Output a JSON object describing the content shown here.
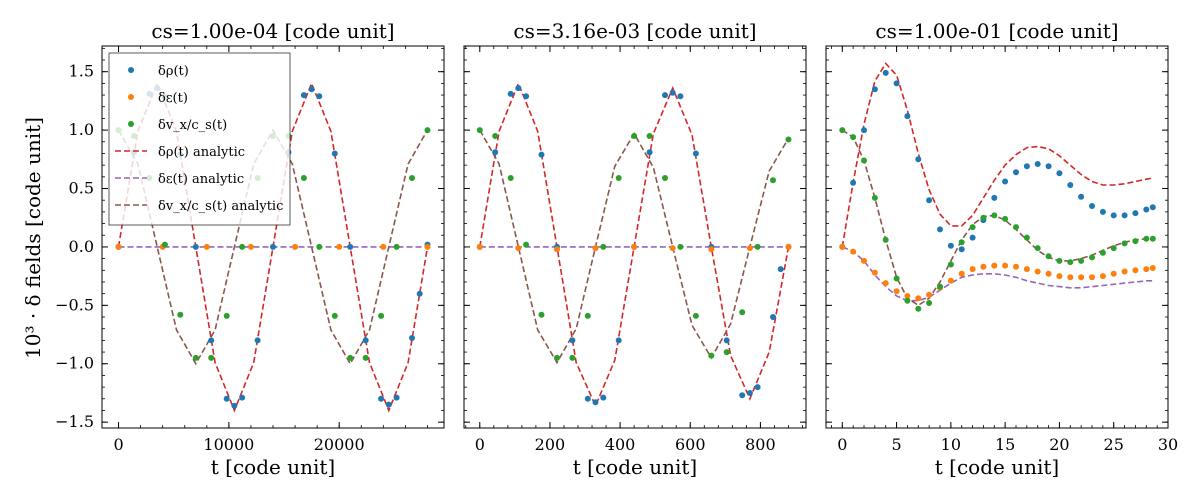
{
  "figure": {
    "ylabel": "10³ · δ fields [code unit]"
  },
  "chart_data": [
    {
      "type": "line",
      "title": "cs=1.00e-04 [code unit]",
      "xlabel": "t [code unit]",
      "ylabel": "10³ · δ fields [code unit]",
      "xlim": [
        -1500,
        29500
      ],
      "ylim": [
        -1.55,
        1.72
      ],
      "xticks": [
        0,
        10000,
        20000
      ],
      "xtick_labels": [
        "0",
        "10000",
        "20000"
      ],
      "yticks": [
        -1.5,
        -1.0,
        -0.5,
        0.0,
        0.5,
        1.0,
        1.5
      ],
      "ytick_labels": [
        "−1.5",
        "−1.0",
        "−0.5",
        "0.0",
        "0.5",
        "1.0",
        "1.5"
      ],
      "show_yticklabels": true,
      "legend": "top-left",
      "series": [
        {
          "name": "δρ(t)",
          "kind": "points",
          "color": "#1f77b4",
          "x": [
            0,
            1400,
            2800,
            3500,
            4200,
            5600,
            7000,
            8400,
            9800,
            10500,
            11200,
            12600,
            14000,
            15400,
            16800,
            17500,
            18200,
            19600,
            21000,
            22400,
            23800,
            24500,
            25200,
            26600,
            27300,
            28000
          ],
          "y": [
            0.0,
            0.81,
            1.31,
            1.36,
            1.29,
            0.79,
            0.0,
            -0.8,
            -1.3,
            -1.36,
            -1.29,
            -0.8,
            0.0,
            0.81,
            1.3,
            1.35,
            1.29,
            0.8,
            0.0,
            -0.8,
            -1.3,
            -1.35,
            -1.29,
            -0.78,
            -0.4,
            0.02
          ]
        },
        {
          "name": "δε(t)",
          "kind": "points",
          "color": "#ff7f0e",
          "x": [
            0,
            4000,
            8000,
            12000,
            16000,
            20000,
            24000,
            28000
          ],
          "y": [
            0,
            0,
            0,
            0,
            0,
            0,
            0,
            0
          ]
        },
        {
          "name": "δv_x/c_s(t)",
          "kind": "points",
          "color": "#2ca02c",
          "x": [
            0,
            1400,
            2800,
            4200,
            5600,
            7000,
            8400,
            9800,
            11200,
            12600,
            14000,
            15400,
            16800,
            18200,
            19600,
            21000,
            22400,
            23800,
            25200,
            26600,
            28000
          ],
          "y": [
            1.0,
            0.95,
            0.59,
            0.02,
            -0.58,
            -0.95,
            -0.95,
            -0.59,
            0.0,
            0.59,
            0.95,
            0.95,
            0.59,
            0.0,
            -0.59,
            -0.95,
            -0.95,
            -0.59,
            0.0,
            0.59,
            1.0
          ]
        },
        {
          "name": "δρ(t) analytic",
          "kind": "dashed",
          "color": "#d62728",
          "x": [
            0,
            1750,
            3500,
            5250,
            7000,
            8750,
            10500,
            12250,
            14000,
            15750,
            17500,
            19250,
            21000,
            22750,
            24500,
            26250,
            28000
          ],
          "y": [
            0.0,
            0.99,
            1.4,
            0.99,
            0.0,
            -0.99,
            -1.4,
            -0.99,
            0.0,
            0.99,
            1.4,
            0.99,
            0.0,
            -0.99,
            -1.4,
            -0.99,
            0.0
          ]
        },
        {
          "name": "δε(t) analytic",
          "kind": "dashed",
          "color": "#9467bd",
          "x": [
            0,
            28000
          ],
          "y": [
            0,
            0
          ]
        },
        {
          "name": "δv_x/c_s(t) analytic",
          "kind": "dashed",
          "color": "#8c564b",
          "x": [
            0,
            1750,
            3500,
            5250,
            7000,
            8750,
            10500,
            12250,
            14000,
            15750,
            17500,
            19250,
            21000,
            22750,
            24500,
            26250,
            28000
          ],
          "y": [
            1.0,
            0.71,
            0.0,
            -0.71,
            -1.0,
            -0.71,
            0.0,
            0.71,
            1.0,
            0.71,
            0.0,
            -0.71,
            -1.0,
            -0.71,
            0.0,
            0.71,
            1.0
          ]
        }
      ]
    },
    {
      "type": "line",
      "title": "cs=3.16e-03 [code unit]",
      "xlabel": "t [code unit]",
      "xlim": [
        -45,
        930
      ],
      "ylim": [
        -1.55,
        1.72
      ],
      "xticks": [
        0,
        200,
        400,
        600,
        800
      ],
      "xtick_labels": [
        "0",
        "200",
        "400",
        "600",
        "800"
      ],
      "yticks": [
        -1.5,
        -1.0,
        -0.5,
        0.0,
        0.5,
        1.0,
        1.5
      ],
      "show_yticklabels": false,
      "series": [
        {
          "name": "δρ(t)",
          "kind": "points",
          "color": "#1f77b4",
          "x": [
            0,
            44,
            88,
            110,
            132,
            176,
            220,
            264,
            308,
            330,
            352,
            396,
            440,
            484,
            528,
            550,
            572,
            616,
            660,
            704,
            748,
            770,
            792,
            836,
            858,
            880
          ],
          "y": [
            0.0,
            0.81,
            1.31,
            1.36,
            1.29,
            0.79,
            0.0,
            -0.8,
            -1.3,
            -1.33,
            -1.29,
            -0.8,
            0.0,
            0.81,
            1.3,
            1.32,
            1.29,
            0.8,
            0.0,
            -0.8,
            -1.27,
            -1.25,
            -1.2,
            -0.6,
            -0.19,
            0.0
          ]
        },
        {
          "name": "δε(t)",
          "kind": "points",
          "color": "#ff7f0e",
          "x": [
            0,
            110,
            220,
            330,
            440,
            550,
            660,
            770,
            880
          ],
          "y": [
            0,
            -0.01,
            -0.02,
            -0.01,
            0,
            -0.01,
            -0.02,
            -0.01,
            0
          ]
        },
        {
          "name": "δv_x/c_s(t)",
          "kind": "points",
          "color": "#2ca02c",
          "x": [
            0,
            44,
            88,
            132,
            176,
            220,
            264,
            308,
            352,
            396,
            440,
            484,
            528,
            572,
            616,
            660,
            704,
            748,
            792,
            836,
            880
          ],
          "y": [
            1.0,
            0.95,
            0.59,
            0.02,
            -0.58,
            -0.95,
            -0.95,
            -0.59,
            0.0,
            0.59,
            0.95,
            0.95,
            0.59,
            0.0,
            -0.59,
            -0.93,
            -0.9,
            -0.56,
            0.0,
            0.57,
            0.92
          ]
        },
        {
          "name": "δρ(t) analytic",
          "kind": "dashed",
          "color": "#d62728",
          "x": [
            0,
            55,
            110,
            165,
            220,
            275,
            330,
            385,
            440,
            495,
            550,
            605,
            660,
            715,
            770,
            825,
            880
          ],
          "y": [
            0.0,
            0.99,
            1.4,
            0.99,
            0.0,
            -0.99,
            -1.36,
            -0.97,
            0.0,
            0.97,
            1.36,
            0.96,
            0.0,
            -0.93,
            -1.3,
            -0.9,
            0.0
          ]
        },
        {
          "name": "δε(t) analytic",
          "kind": "dashed",
          "color": "#9467bd",
          "x": [
            0,
            880
          ],
          "y": [
            0,
            0
          ]
        },
        {
          "name": "δv_x/c_s(t) analytic",
          "kind": "dashed",
          "color": "#8c564b",
          "x": [
            0,
            55,
            110,
            165,
            220,
            275,
            330,
            385,
            440,
            495,
            550,
            605,
            660,
            715,
            770,
            825,
            880
          ],
          "y": [
            1.0,
            0.71,
            0.0,
            -0.71,
            -0.99,
            -0.7,
            0.0,
            0.69,
            0.97,
            0.68,
            0.0,
            -0.67,
            -0.95,
            -0.66,
            0.0,
            0.65,
            0.93
          ]
        }
      ]
    },
    {
      "type": "line",
      "title": "cs=1.00e-01 [code unit]",
      "xlabel": "t [code unit]",
      "xlim": [
        -1.5,
        30
      ],
      "ylim": [
        -1.55,
        1.72
      ],
      "xticks": [
        0,
        5,
        10,
        15,
        20,
        25,
        30
      ],
      "xtick_labels": [
        "0",
        "5",
        "10",
        "15",
        "20",
        "25",
        "30"
      ],
      "yticks": [
        -1.5,
        -1.0,
        -0.5,
        0.0,
        0.5,
        1.0,
        1.5
      ],
      "show_yticklabels": false,
      "series": [
        {
          "name": "δρ(t)",
          "kind": "points",
          "color": "#1f77b4",
          "x": [
            0,
            1,
            2,
            3,
            4,
            5,
            6,
            7,
            8,
            9,
            10,
            11,
            12,
            13,
            14,
            15,
            16,
            17,
            18,
            19,
            20,
            21,
            22,
            23,
            24,
            25,
            26,
            27,
            28,
            28.6
          ],
          "y": [
            0.0,
            0.55,
            1.0,
            1.35,
            1.49,
            1.4,
            1.12,
            0.75,
            0.4,
            0.15,
            0.01,
            -0.02,
            0.08,
            0.23,
            0.42,
            0.56,
            0.64,
            0.69,
            0.71,
            0.69,
            0.63,
            0.53,
            0.43,
            0.35,
            0.3,
            0.27,
            0.27,
            0.29,
            0.32,
            0.34
          ]
        },
        {
          "name": "δε(t)",
          "kind": "points",
          "color": "#ff7f0e",
          "x": [
            0,
            1,
            2,
            3,
            4,
            5,
            6,
            7,
            8,
            9,
            10,
            11,
            12,
            13,
            14,
            15,
            16,
            17,
            18,
            19,
            20,
            21,
            22,
            23,
            24,
            25,
            26,
            27,
            28,
            28.6
          ],
          "y": [
            0.0,
            -0.04,
            -0.12,
            -0.22,
            -0.31,
            -0.38,
            -0.42,
            -0.44,
            -0.41,
            -0.35,
            -0.29,
            -0.23,
            -0.19,
            -0.17,
            -0.16,
            -0.16,
            -0.17,
            -0.19,
            -0.21,
            -0.23,
            -0.25,
            -0.26,
            -0.26,
            -0.26,
            -0.25,
            -0.23,
            -0.21,
            -0.2,
            -0.19,
            -0.18
          ]
        },
        {
          "name": "δv_x/c_s(t)",
          "kind": "points",
          "color": "#2ca02c",
          "x": [
            0,
            1,
            2,
            3,
            4,
            5,
            6,
            7,
            8,
            9,
            10,
            11,
            12,
            13,
            14,
            15,
            16,
            17,
            18,
            19,
            20,
            21,
            22,
            23,
            24,
            25,
            26,
            27,
            28,
            28.6
          ],
          "y": [
            1.0,
            0.94,
            0.74,
            0.42,
            0.06,
            -0.27,
            -0.46,
            -0.53,
            -0.48,
            -0.34,
            -0.15,
            0.04,
            0.17,
            0.25,
            0.27,
            0.24,
            0.17,
            0.08,
            -0.01,
            -0.08,
            -0.12,
            -0.13,
            -0.12,
            -0.09,
            -0.05,
            -0.01,
            0.03,
            0.05,
            0.07,
            0.07
          ]
        },
        {
          "name": "δρ(t) analytic",
          "kind": "dashed",
          "color": "#d62728",
          "x": [
            0,
            1,
            2,
            3,
            4,
            5,
            6,
            7,
            8,
            9,
            10,
            11,
            12,
            13,
            14,
            15,
            16,
            17,
            18,
            19,
            20,
            21,
            22,
            23,
            24,
            25,
            26,
            27,
            28,
            28.6
          ],
          "y": [
            0.0,
            0.55,
            1.05,
            1.42,
            1.57,
            1.47,
            1.17,
            0.8,
            0.49,
            0.28,
            0.18,
            0.18,
            0.27,
            0.42,
            0.57,
            0.7,
            0.79,
            0.85,
            0.86,
            0.84,
            0.78,
            0.7,
            0.62,
            0.56,
            0.53,
            0.53,
            0.54,
            0.56,
            0.58,
            0.59
          ]
        },
        {
          "name": "δε(t) analytic",
          "kind": "dashed",
          "color": "#9467bd",
          "x": [
            0,
            1,
            2,
            3,
            4,
            5,
            6,
            7,
            8,
            9,
            10,
            11,
            12,
            13,
            14,
            15,
            16,
            17,
            18,
            19,
            20,
            21,
            22,
            23,
            24,
            25,
            26,
            27,
            28,
            28.6
          ],
          "y": [
            0.0,
            -0.04,
            -0.12,
            -0.24,
            -0.34,
            -0.42,
            -0.46,
            -0.46,
            -0.43,
            -0.37,
            -0.31,
            -0.26,
            -0.24,
            -0.23,
            -0.23,
            -0.24,
            -0.26,
            -0.29,
            -0.31,
            -0.33,
            -0.34,
            -0.35,
            -0.35,
            -0.34,
            -0.33,
            -0.32,
            -0.31,
            -0.3,
            -0.29,
            -0.29
          ]
        },
        {
          "name": "δv_x/c_s(t) analytic",
          "kind": "dashed",
          "color": "#8c564b",
          "x": [
            0,
            1,
            2,
            3,
            4,
            5,
            6,
            7,
            8,
            9,
            10,
            11,
            12,
            13,
            14,
            15,
            16,
            17,
            18,
            19,
            20,
            21,
            22,
            23,
            24,
            25,
            26,
            27,
            28,
            28.6
          ],
          "y": [
            1.0,
            0.94,
            0.74,
            0.42,
            0.06,
            -0.26,
            -0.44,
            -0.5,
            -0.44,
            -0.3,
            -0.12,
            0.06,
            0.19,
            0.26,
            0.27,
            0.23,
            0.15,
            0.06,
            -0.03,
            -0.09,
            -0.12,
            -0.12,
            -0.1,
            -0.07,
            -0.03,
            0.01,
            0.04,
            0.06,
            0.07,
            0.07
          ]
        }
      ]
    }
  ]
}
